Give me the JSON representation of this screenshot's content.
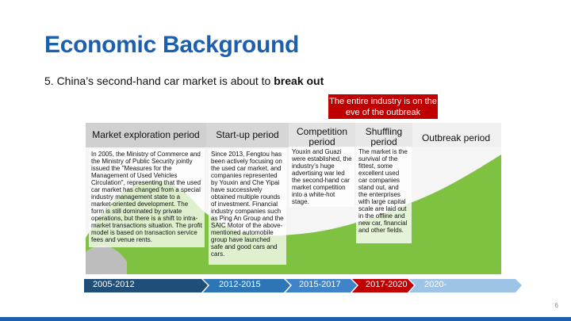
{
  "slide": {
    "title": "Economic Background",
    "subtitle_prefix": "5.  China’s second-hand car market is about to ",
    "subtitle_bold": "break out",
    "callout": "The entire industry is on the eve of the outbreak",
    "page_number": "6"
  },
  "periods": [
    {
      "header": "Market exploration period",
      "text": "In 2005, the Ministry of Commerce and the Ministry of Public Security jointly issued the \"Measures for the Management of Used Vehicles Circulation\", representing that the used car market has changed from a special industry management state to a market-oriented development. The form is still dominated by private operations, but there is a shift to intra-market transactions situation. The profit model is based on transaction service fees and venue rents.",
      "years": "2005-2012"
    },
    {
      "header": "Start-up period",
      "text": "Since 2013, Fengtou has been actively focusing on the used car market, and companies represented by Youxin and Che Yipai have successively obtained multiple rounds of investment. Financial industry companies such as Ping An Group and the SAIC Motor of the above-mentioned automobile group have launched safe and good cars and cars.",
      "years": "2012-2015"
    },
    {
      "header": "Competition period",
      "text": "Youxin and Guazi were established, the industry’s huge advertising war led the second-hand car market competition into a white-hot stage.",
      "years": "2015-2017"
    },
    {
      "header": "Shuffling period",
      "text": "The market is the survival of the fittest, some excellent used car companies stand out, and the enterprises with large capital scale are laid out in the offline and new car, financial and other fields.",
      "years": "2017-2020"
    },
    {
      "header": "Outbreak period",
      "text": "",
      "years": "2020-"
    }
  ],
  "colors": {
    "title": "#1b5fae",
    "callout": "#c00000",
    "green": "#7fc241",
    "timeline_dark": "#1f4e79",
    "timeline_mid": "#2e75b6",
    "timeline_red": "#c00000",
    "timeline_light": "#9dc3e6"
  }
}
